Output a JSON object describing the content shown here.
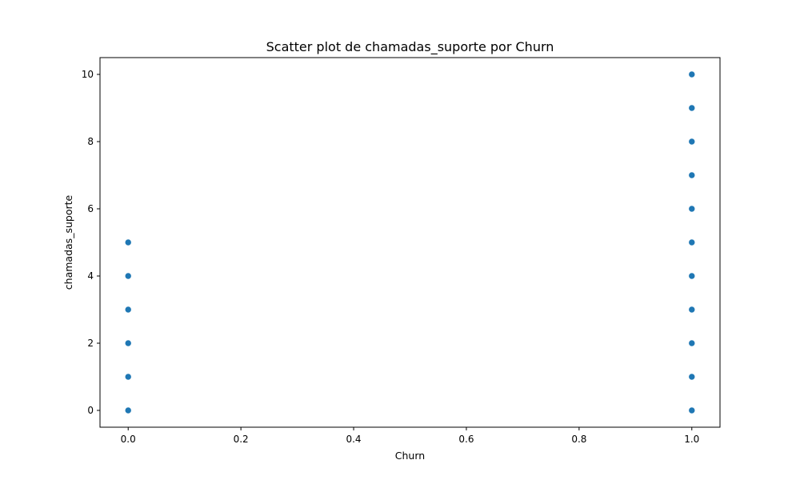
{
  "chart_data": {
    "type": "scatter",
    "title": "Scatter plot de chamadas_suporte por Churn",
    "xlabel": "Churn",
    "ylabel": "chamadas_suporte",
    "xlim": [
      -0.05,
      1.05
    ],
    "ylim": [
      -0.5,
      10.5
    ],
    "xticks": [
      0.0,
      0.2,
      0.4,
      0.6,
      0.8,
      1.0
    ],
    "xtick_labels": [
      "0.0",
      "0.2",
      "0.4",
      "0.6",
      "0.8",
      "1.0"
    ],
    "yticks": [
      0,
      2,
      4,
      6,
      8,
      10
    ],
    "ytick_labels": [
      "0",
      "2",
      "4",
      "6",
      "8",
      "10"
    ],
    "grid": false,
    "marker_color": "#1f77b4",
    "points": [
      {
        "x": 0,
        "y": 0
      },
      {
        "x": 0,
        "y": 1
      },
      {
        "x": 0,
        "y": 2
      },
      {
        "x": 0,
        "y": 3
      },
      {
        "x": 0,
        "y": 4
      },
      {
        "x": 0,
        "y": 5
      },
      {
        "x": 1,
        "y": 0
      },
      {
        "x": 1,
        "y": 1
      },
      {
        "x": 1,
        "y": 2
      },
      {
        "x": 1,
        "y": 3
      },
      {
        "x": 1,
        "y": 4
      },
      {
        "x": 1,
        "y": 5
      },
      {
        "x": 1,
        "y": 6
      },
      {
        "x": 1,
        "y": 7
      },
      {
        "x": 1,
        "y": 8
      },
      {
        "x": 1,
        "y": 9
      },
      {
        "x": 1,
        "y": 10
      }
    ]
  }
}
